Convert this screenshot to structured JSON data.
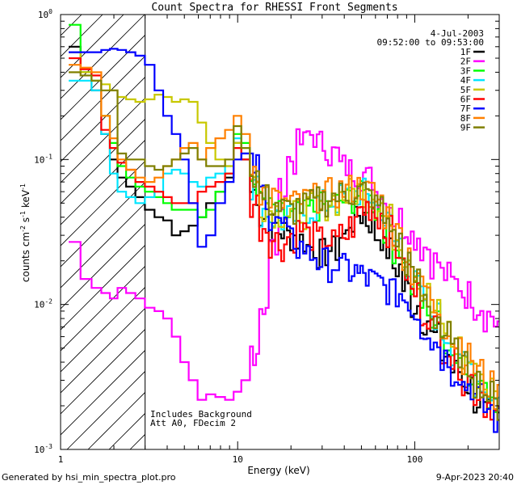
{
  "chart_data": {
    "type": "line",
    "title": "Count Spectra for RHESSI Front Segments",
    "xlabel": "Energy (keV)",
    "ylabel_base": "counts cm",
    "xscale": "log",
    "yscale": "log",
    "xlim": [
      1,
      300
    ],
    "ylim": [
      0.001,
      1
    ],
    "x_ticks": [
      {
        "v": 1,
        "label": "1"
      },
      {
        "v": 10,
        "label": "10"
      },
      {
        "v": 100,
        "label": "100"
      }
    ],
    "y_ticks": [
      {
        "v": 1,
        "label": "10"
      },
      {
        "v": 0.1,
        "label": "10"
      },
      {
        "v": 0.01,
        "label": "10"
      },
      {
        "v": 0.001,
        "label": "10"
      }
    ],
    "y_tick_exps": [
      "0",
      "-1",
      "-2",
      "-3"
    ],
    "date": "4-Jul-2003",
    "time_range": "09:52:00 to 09:53:00",
    "annotation_lines": [
      "Includes Background",
      "Att A0, FDecim 2"
    ],
    "hatched_below_keV": 3,
    "energy": [
      1.2,
      1.4,
      1.6,
      1.8,
      2.0,
      2.2,
      2.5,
      2.8,
      3.2,
      3.6,
      4.0,
      4.5,
      5.0,
      5.6,
      6.3,
      7.0,
      8.0,
      9.0,
      10.0,
      11.0,
      12.5,
      14.0,
      16.0,
      18.0,
      20.0,
      23.0,
      26.0,
      30.0,
      35.0,
      40.0,
      45.0,
      50.0,
      56.0,
      63.0,
      70.0,
      80.0,
      90.0,
      100.0,
      115.0,
      130.0,
      150.0,
      170.0,
      200.0,
      230.0,
      260.0,
      300.0
    ],
    "series": [
      {
        "name": "1F",
        "color": "#000000",
        "values": [
          0.6,
          0.4,
          0.3,
          0.15,
          0.1,
          0.075,
          0.065,
          0.055,
          0.045,
          0.04,
          0.038,
          0.03,
          0.032,
          0.035,
          0.04,
          0.05,
          0.06,
          0.075,
          0.13,
          0.1,
          0.06,
          0.04,
          0.035,
          0.032,
          0.03,
          0.028,
          0.025,
          0.023,
          0.024,
          0.03,
          0.038,
          0.042,
          0.038,
          0.03,
          0.024,
          0.018,
          0.013,
          0.01,
          0.008,
          0.006,
          0.0045,
          0.0035,
          0.0028,
          0.0022,
          0.0018,
          0.0016
        ]
      },
      {
        "name": "2F",
        "color": "#ff00ff",
        "values": [
          0.027,
          0.015,
          0.013,
          0.012,
          0.011,
          0.013,
          0.012,
          0.011,
          0.0095,
          0.009,
          0.008,
          0.006,
          0.004,
          0.003,
          0.0022,
          0.0024,
          0.0023,
          0.0022,
          0.0025,
          0.003,
          0.005,
          0.01,
          0.025,
          0.06,
          0.1,
          0.13,
          0.15,
          0.13,
          0.11,
          0.09,
          0.085,
          0.08,
          0.075,
          0.06,
          0.05,
          0.04,
          0.035,
          0.03,
          0.025,
          0.02,
          0.016,
          0.014,
          0.012,
          0.01,
          0.0085,
          0.0075
        ]
      },
      {
        "name": "3F",
        "color": "#00ff00",
        "values": [
          0.85,
          0.4,
          0.35,
          0.2,
          0.13,
          0.09,
          0.075,
          0.065,
          0.06,
          0.055,
          0.05,
          0.045,
          0.045,
          0.045,
          0.04,
          0.045,
          0.06,
          0.08,
          0.15,
          0.13,
          0.07,
          0.05,
          0.045,
          0.042,
          0.04,
          0.042,
          0.045,
          0.048,
          0.05,
          0.052,
          0.055,
          0.057,
          0.052,
          0.045,
          0.035,
          0.025,
          0.018,
          0.013,
          0.01,
          0.0075,
          0.0058,
          0.0045,
          0.0036,
          0.0029,
          0.0024,
          0.0021
        ]
      },
      {
        "name": "4F",
        "color": "#00e5ff",
        "values": [
          0.35,
          0.35,
          0.3,
          0.15,
          0.08,
          0.06,
          0.055,
          0.05,
          0.055,
          0.06,
          0.08,
          0.085,
          0.08,
          0.07,
          0.065,
          0.075,
          0.08,
          0.09,
          0.14,
          0.11,
          0.065,
          0.045,
          0.04,
          0.038,
          0.04,
          0.043,
          0.046,
          0.05,
          0.052,
          0.055,
          0.058,
          0.06,
          0.055,
          0.047,
          0.037,
          0.027,
          0.019,
          0.014,
          0.011,
          0.0085,
          0.0062,
          0.0049,
          0.0038,
          0.003,
          0.0025,
          0.0022
        ]
      },
      {
        "name": "5F",
        "color": "#c8c800",
        "values": [
          0.55,
          0.4,
          0.35,
          0.33,
          0.3,
          0.27,
          0.26,
          0.25,
          0.26,
          0.28,
          0.27,
          0.25,
          0.26,
          0.25,
          0.18,
          0.13,
          0.1,
          0.09,
          0.13,
          0.11,
          0.07,
          0.05,
          0.045,
          0.043,
          0.042,
          0.044,
          0.047,
          0.05,
          0.053,
          0.056,
          0.06,
          0.062,
          0.058,
          0.05,
          0.04,
          0.03,
          0.022,
          0.016,
          0.012,
          0.009,
          0.0068,
          0.0052,
          0.0041,
          0.0033,
          0.0027,
          0.0023
        ]
      },
      {
        "name": "6F",
        "color": "#ff0000",
        "values": [
          0.5,
          0.42,
          0.38,
          0.16,
          0.12,
          0.095,
          0.085,
          0.07,
          0.065,
          0.06,
          0.055,
          0.05,
          0.05,
          0.05,
          0.06,
          0.065,
          0.07,
          0.08,
          0.12,
          0.1,
          0.05,
          0.035,
          0.028,
          0.026,
          0.03,
          0.033,
          0.03,
          0.028,
          0.027,
          0.03,
          0.035,
          0.045,
          0.048,
          0.042,
          0.033,
          0.024,
          0.017,
          0.012,
          0.009,
          0.007,
          0.0052,
          0.004,
          0.0031,
          0.0025,
          0.0021,
          0.0018
        ]
      },
      {
        "name": "7F",
        "color": "#0000ff",
        "values": [
          0.55,
          0.55,
          0.55,
          0.57,
          0.58,
          0.57,
          0.55,
          0.52,
          0.45,
          0.3,
          0.2,
          0.15,
          0.1,
          0.05,
          0.025,
          0.03,
          0.05,
          0.07,
          0.1,
          0.11,
          0.09,
          0.06,
          0.04,
          0.035,
          0.028,
          0.025,
          0.022,
          0.02,
          0.019,
          0.018,
          0.017,
          0.016,
          0.015,
          0.014,
          0.013,
          0.012,
          0.011,
          0.009,
          0.007,
          0.0055,
          0.0044,
          0.0035,
          0.0028,
          0.0023,
          0.0019,
          0.0016
        ]
      },
      {
        "name": "8F",
        "color": "#ff8000",
        "values": [
          0.45,
          0.43,
          0.4,
          0.2,
          0.14,
          0.1,
          0.085,
          0.075,
          0.07,
          0.075,
          0.09,
          0.1,
          0.12,
          0.13,
          0.1,
          0.12,
          0.14,
          0.16,
          0.2,
          0.15,
          0.09,
          0.06,
          0.055,
          0.05,
          0.05,
          0.052,
          0.055,
          0.057,
          0.06,
          0.062,
          0.064,
          0.065,
          0.06,
          0.052,
          0.042,
          0.031,
          0.023,
          0.017,
          0.013,
          0.0095,
          0.0072,
          0.0056,
          0.0044,
          0.0035,
          0.0028,
          0.0024
        ]
      },
      {
        "name": "9F",
        "color": "#808000",
        "values": [
          0.4,
          0.38,
          0.35,
          0.3,
          0.3,
          0.11,
          0.1,
          0.1,
          0.09,
          0.085,
          0.09,
          0.1,
          0.11,
          0.12,
          0.1,
          0.09,
          0.09,
          0.1,
          0.17,
          0.12,
          0.08,
          0.055,
          0.05,
          0.046,
          0.045,
          0.048,
          0.05,
          0.053,
          0.056,
          0.058,
          0.06,
          0.061,
          0.056,
          0.048,
          0.038,
          0.028,
          0.02,
          0.015,
          0.011,
          0.0082,
          0.0062,
          0.0048,
          0.0038,
          0.003,
          0.0024,
          0.002
        ]
      }
    ]
  },
  "footer": {
    "generated_by": "Generated by hsi_min_spectra_plot.pro",
    "timestamp": "9-Apr-2023 20:40"
  }
}
